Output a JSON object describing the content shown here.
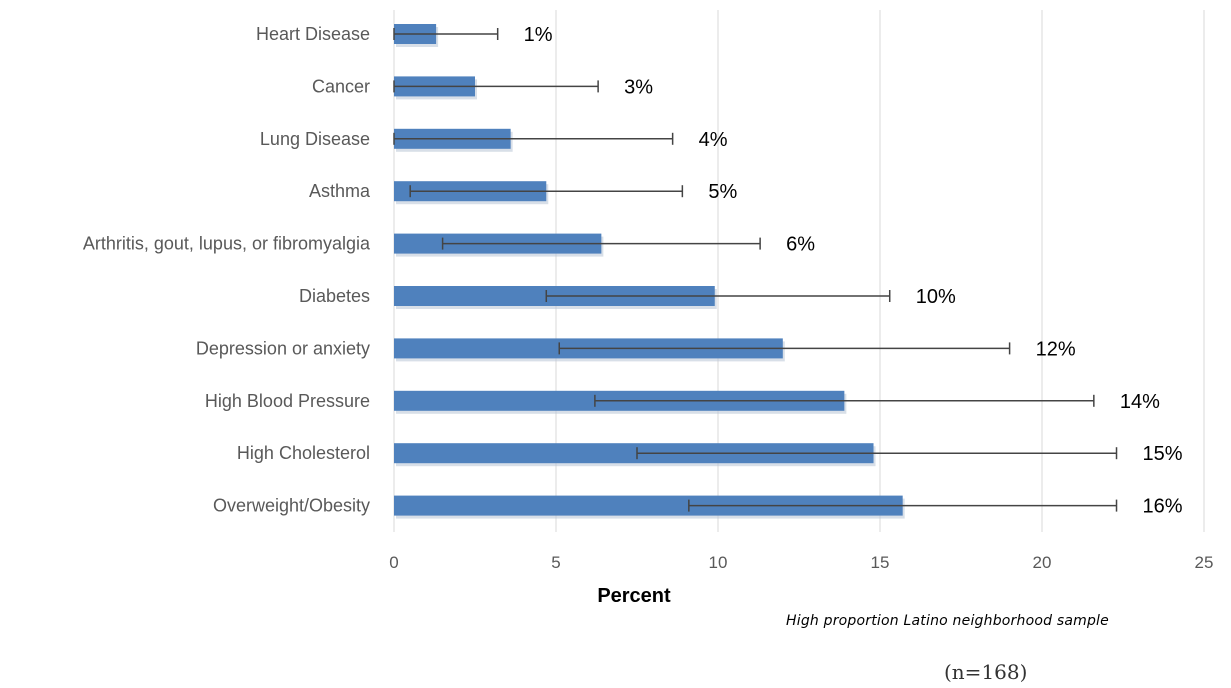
{
  "chart_data": {
    "type": "bar",
    "orientation": "horizontal",
    "categories": [
      "Heart Disease",
      "Cancer",
      "Lung Disease",
      "Asthma",
      "Arthritis, gout, lupus, or fibromyalgia",
      "Diabetes",
      "Depression or anxiety",
      "High Blood Pressure",
      "High Cholesterol",
      "Overweight/Obesity"
    ],
    "values": [
      1.3,
      2.5,
      3.6,
      4.7,
      6.4,
      9.9,
      12.0,
      13.9,
      14.8,
      15.7
    ],
    "error_low": [
      0.0,
      0.0,
      0.0,
      0.5,
      1.5,
      4.7,
      5.1,
      6.2,
      7.5,
      9.1
    ],
    "error_high": [
      3.2,
      6.3,
      8.6,
      8.9,
      11.3,
      15.3,
      19.0,
      21.6,
      22.3,
      22.3
    ],
    "data_labels": [
      "1%",
      "3%",
      "4%",
      "5%",
      "6%",
      "10%",
      "12%",
      "14%",
      "15%",
      "16%"
    ],
    "xlabel": "Percent",
    "xlim": [
      0,
      25
    ],
    "xticks": [
      0,
      5,
      10,
      15,
      20,
      25
    ],
    "grid": "vertical",
    "bar_color": "#4f81bd",
    "error_color": "#444444",
    "gridline_color": "#d9d9d9"
  },
  "annotations": {
    "sample_note": "High proportion Latino neighborhood sample",
    "sample_size": "(n=168)"
  }
}
